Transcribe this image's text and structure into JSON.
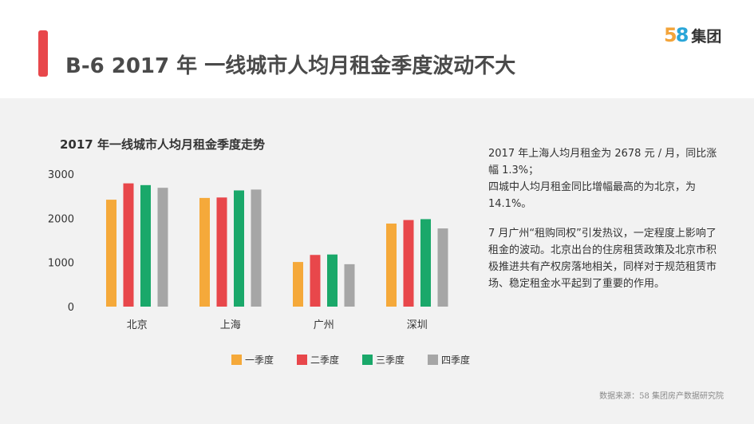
{
  "title": "B-6 2017 年 一线城市人均月租金季度波动不大",
  "logo": {
    "digits": [
      "5",
      "8"
    ],
    "text": "集团"
  },
  "chart_data": {
    "type": "bar",
    "title": "2017 年一线城市人均月租金季度走势",
    "categories": [
      "北京",
      "上海",
      "广州",
      "深圳"
    ],
    "series": [
      {
        "name": "一季度",
        "color": "#f5a93a",
        "values": [
          2420,
          2460,
          1010,
          1880
        ]
      },
      {
        "name": "二季度",
        "color": "#e8474b",
        "values": [
          2790,
          2470,
          1170,
          1960
        ]
      },
      {
        "name": "三季度",
        "color": "#1aa86a",
        "values": [
          2750,
          2630,
          1180,
          1980
        ]
      },
      {
        "name": "四季度",
        "color": "#a6a6a6",
        "values": [
          2690,
          2650,
          960,
          1770
        ]
      }
    ],
    "ylim": [
      0,
      3000
    ],
    "yticks": [
      0,
      1000,
      2000,
      3000
    ],
    "grid": false,
    "legend": "bottom"
  },
  "description": {
    "p1": "2017 年上海人均月租金为 2678 元 / 月，同比涨幅 1.3%；",
    "p2": "四城中人均月租金同比增幅最高的为北京，为 14.1%。",
    "p3": "7 月广州“租购同权”引发热议，一定程度上影响了租金的波动。北京出台的住房租赁政策及北京市积极推进共有产权房落地相关，同样对于规范租赁市场、稳定租金水平起到了重要的作用。"
  },
  "source": "数据来源：58 集团房产数据研究院"
}
